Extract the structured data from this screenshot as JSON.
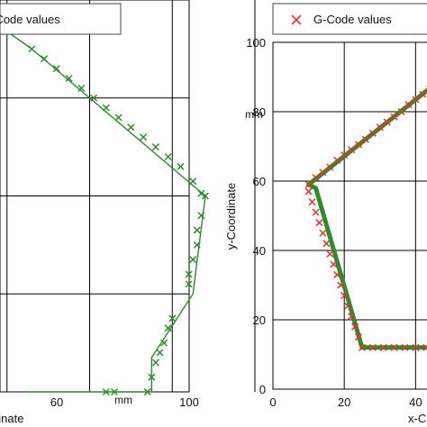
{
  "chart_data": [
    {
      "type": "line",
      "xlabel": "x-Coordinate",
      "ylabel": "",
      "unit_label": "mm",
      "xlim": [
        20,
        100
      ],
      "ylim": [
        20,
        100
      ],
      "x_ticks": [
        {
          "value": 60,
          "label": "60"
        },
        {
          "value": 100,
          "label": "100"
        }
      ],
      "grid": true,
      "legend": {
        "position": "top-left",
        "entries": [
          "G-Code values"
        ]
      },
      "colors": {
        "series": "#2e8b2e",
        "marker": "#2e8b2e"
      },
      "series": [
        {
          "name": "G-Code values",
          "path": [
            [
              24,
              88
            ],
            [
              36,
              96
            ],
            [
              46,
              90
            ],
            [
              88,
              60
            ],
            [
              85,
              40
            ],
            [
              75,
              27
            ],
            [
              75,
              20
            ],
            [
              45,
              20
            ]
          ],
          "points": [
            [
              24,
              88
            ],
            [
              26,
              89
            ],
            [
              28,
              90.5
            ],
            [
              30,
              92
            ],
            [
              32,
              93.5
            ],
            [
              34,
              95
            ],
            [
              35,
              95.5
            ],
            [
              46,
              90
            ],
            [
              49,
              88
            ],
            [
              52,
              86
            ],
            [
              55,
              84
            ],
            [
              58,
              82
            ],
            [
              61,
              80
            ],
            [
              64,
              78
            ],
            [
              67,
              76
            ],
            [
              70,
              74
            ],
            [
              73,
              72
            ],
            [
              76,
              70
            ],
            [
              79,
              68
            ],
            [
              82,
              66
            ],
            [
              85,
              63
            ],
            [
              88,
              60
            ],
            [
              87,
              60.5
            ],
            [
              87,
              56
            ],
            [
              86,
              53
            ],
            [
              86,
              50
            ],
            [
              85,
              47
            ],
            [
              84,
              44
            ],
            [
              84,
              42
            ],
            [
              80,
              35
            ],
            [
              79,
              33
            ],
            [
              78,
              30
            ],
            [
              77,
              28
            ],
            [
              76,
              26
            ],
            [
              75,
              23
            ],
            [
              74,
              20
            ],
            [
              66,
              20
            ],
            [
              64,
              20
            ]
          ]
        }
      ]
    },
    {
      "type": "line",
      "xlabel": "x-C",
      "ylabel": "y-Coordinate",
      "unit_label": "mm",
      "xlim": [
        0,
        48
      ],
      "ylim": [
        0,
        100
      ],
      "x_ticks": [
        {
          "value": 0,
          "label": "0"
        },
        {
          "value": 20,
          "label": "20"
        },
        {
          "value": 40,
          "label": "40"
        }
      ],
      "y_ticks": [
        {
          "value": 0,
          "label": "0"
        },
        {
          "value": 20,
          "label": "20"
        },
        {
          "value": 40,
          "label": "40"
        },
        {
          "value": 60,
          "label": "60"
        },
        {
          "value": 80,
          "label": "80"
        },
        {
          "value": 100,
          "label": "100"
        }
      ],
      "grid": true,
      "legend": {
        "position": "top",
        "entries": [
          "G-Code values"
        ]
      },
      "colors": {
        "line": "#2e8b2e",
        "marker": "#e0352b"
      },
      "series": [
        {
          "name": "G-Code values",
          "path": [
            [
              48,
              90
            ],
            [
              10,
              59
            ],
            [
              12,
              58
            ],
            [
              25,
              12
            ],
            [
              48,
              12
            ]
          ],
          "points": [
            [
              48,
              90
            ],
            [
              46,
              88.5
            ],
            [
              44,
              86.7
            ],
            [
              42,
              85
            ],
            [
              40,
              83.5
            ],
            [
              38,
              82
            ],
            [
              36,
              80
            ],
            [
              34,
              78.5
            ],
            [
              32,
              77
            ],
            [
              30,
              75.5
            ],
            [
              28,
              73.8
            ],
            [
              26,
              72
            ],
            [
              24,
              70.5
            ],
            [
              22,
              69
            ],
            [
              20,
              67.5
            ],
            [
              18,
              66
            ],
            [
              16,
              64
            ],
            [
              14,
              62.5
            ],
            [
              12,
              61
            ],
            [
              10,
              59
            ],
            [
              10,
              57
            ],
            [
              11,
              54
            ],
            [
              12,
              51
            ],
            [
              13,
              48
            ],
            [
              14,
              45
            ],
            [
              15,
              42
            ],
            [
              16,
              39
            ],
            [
              17,
              36
            ],
            [
              18,
              33
            ],
            [
              19,
              30
            ],
            [
              20,
              27
            ],
            [
              21,
              24
            ],
            [
              22,
              21
            ],
            [
              23,
              18
            ],
            [
              24,
              15
            ],
            [
              25,
              12
            ],
            [
              28,
              12
            ],
            [
              31,
              12
            ],
            [
              34,
              12
            ],
            [
              37,
              12
            ],
            [
              40,
              12
            ],
            [
              43,
              12
            ],
            [
              46,
              12
            ],
            [
              48,
              12
            ]
          ]
        }
      ]
    }
  ]
}
